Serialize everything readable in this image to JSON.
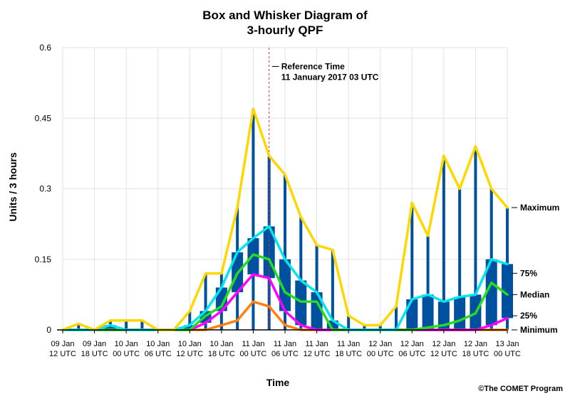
{
  "chart_data": {
    "type": "box",
    "title_line1": "Box and Whisker Diagram of",
    "title_line2": "3-hourly QPF",
    "xlabel": "Time",
    "ylabel": "Units / 3 hours",
    "ylim": [
      0,
      0.6
    ],
    "yticks": [
      "0",
      "0.15",
      "0.3",
      "0.45",
      "0.6"
    ],
    "ytick_values": [
      0,
      0.15,
      0.3,
      0.45,
      0.6
    ],
    "xticks": [
      {
        "line1": "09 Jan",
        "line2": "12 UTC"
      },
      {
        "line1": "09 Jan",
        "line2": "18 UTC"
      },
      {
        "line1": "10 Jan",
        "line2": "00 UTC"
      },
      {
        "line1": "10 Jan",
        "line2": "06 UTC"
      },
      {
        "line1": "10 Jan",
        "line2": "12 UTC"
      },
      {
        "line1": "10 Jan",
        "line2": "18 UTC"
      },
      {
        "line1": "11 Jan",
        "line2": "00 UTC"
      },
      {
        "line1": "11 Jan",
        "line2": "06 UTC"
      },
      {
        "line1": "11 Jan",
        "line2": "12 UTC"
      },
      {
        "line1": "11 Jan",
        "line2": "18 UTC"
      },
      {
        "line1": "12 Jan",
        "line2": "00 UTC"
      },
      {
        "line1": "12 Jan",
        "line2": "06 UTC"
      },
      {
        "line1": "12 Jan",
        "line2": "12 UTC"
      },
      {
        "line1": "12 Jan",
        "line2": "18 UTC"
      },
      {
        "line1": "13 Jan",
        "line2": "00 UTC"
      }
    ],
    "time_steps": [
      "09 Jan 12 UTC",
      "09 Jan 15 UTC",
      "09 Jan 18 UTC",
      "09 Jan 21 UTC",
      "10 Jan 00 UTC",
      "10 Jan 03 UTC",
      "10 Jan 06 UTC",
      "10 Jan 09 UTC",
      "10 Jan 12 UTC",
      "10 Jan 15 UTC",
      "10 Jan 18 UTC",
      "10 Jan 21 UTC",
      "11 Jan 00 UTC",
      "11 Jan 03 UTC",
      "11 Jan 06 UTC",
      "11 Jan 09 UTC",
      "11 Jan 12 UTC",
      "11 Jan 15 UTC",
      "11 Jan 18 UTC",
      "11 Jan 21 UTC",
      "12 Jan 00 UTC",
      "12 Jan 03 UTC",
      "12 Jan 06 UTC",
      "12 Jan 09 UTC",
      "12 Jan 12 UTC",
      "12 Jan 15 UTC",
      "12 Jan 18 UTC",
      "12 Jan 21 UTC",
      "13 Jan 00 UTC"
    ],
    "reference": {
      "label_line1": "Reference Time",
      "label_line2": "11 January 2017 03 UTC",
      "time": "11 Jan 03 UTC"
    },
    "series": [
      {
        "name": "Maximum",
        "color": "#ffd700",
        "values": [
          0,
          0.013,
          0,
          0.02,
          0.02,
          0.02,
          0,
          0,
          0.04,
          0.12,
          0.12,
          0.26,
          0.47,
          0.37,
          0.33,
          0.24,
          0.18,
          0.17,
          0.03,
          0.01,
          0.01,
          0.05,
          0.27,
          0.2,
          0.37,
          0.3,
          0.39,
          0.3,
          0.26
        ]
      },
      {
        "name": "75%",
        "color": "#00e5ee",
        "values": [
          0,
          0,
          0,
          0.01,
          0,
          0,
          0,
          0,
          0.01,
          0.04,
          0.09,
          0.165,
          0.195,
          0.22,
          0.15,
          0.105,
          0.08,
          0.02,
          0,
          0,
          0,
          0,
          0.065,
          0.075,
          0.06,
          0.07,
          0.075,
          0.15,
          0.14
        ]
      },
      {
        "name": "Median",
        "color": "#22dd22",
        "values": [
          0,
          0,
          0,
          0,
          0,
          0,
          0,
          0,
          0,
          0.03,
          0.05,
          0.12,
          0.16,
          0.15,
          0.08,
          0.06,
          0.06,
          0,
          0,
          0,
          0,
          0,
          0,
          0.005,
          0.01,
          0.02,
          0.035,
          0.1,
          0.075
        ]
      },
      {
        "name": "25%",
        "color": "#ff00ff",
        "values": [
          0,
          0,
          0,
          0,
          0,
          0,
          0,
          0,
          0,
          0.015,
          0.04,
          0.08,
          0.118,
          0.11,
          0.04,
          0.01,
          0,
          0,
          0,
          0,
          0,
          0,
          0,
          0,
          0,
          0,
          0,
          0.01,
          0.025
        ]
      },
      {
        "name": "Minimum",
        "color": "#ff8010",
        "values": [
          0,
          0,
          0,
          0,
          0,
          0,
          0,
          0,
          0,
          0,
          0.01,
          0.02,
          0.06,
          0.05,
          0.01,
          0,
          0,
          0,
          0,
          0,
          0,
          0,
          0,
          0,
          0,
          0,
          0,
          0,
          0
        ]
      }
    ],
    "right_labels": [
      "Maximum",
      "75%",
      "Median",
      "25%",
      "Minimum"
    ],
    "box_color": "#0050a0",
    "grid": true,
    "credit": "©The COMET Program"
  }
}
